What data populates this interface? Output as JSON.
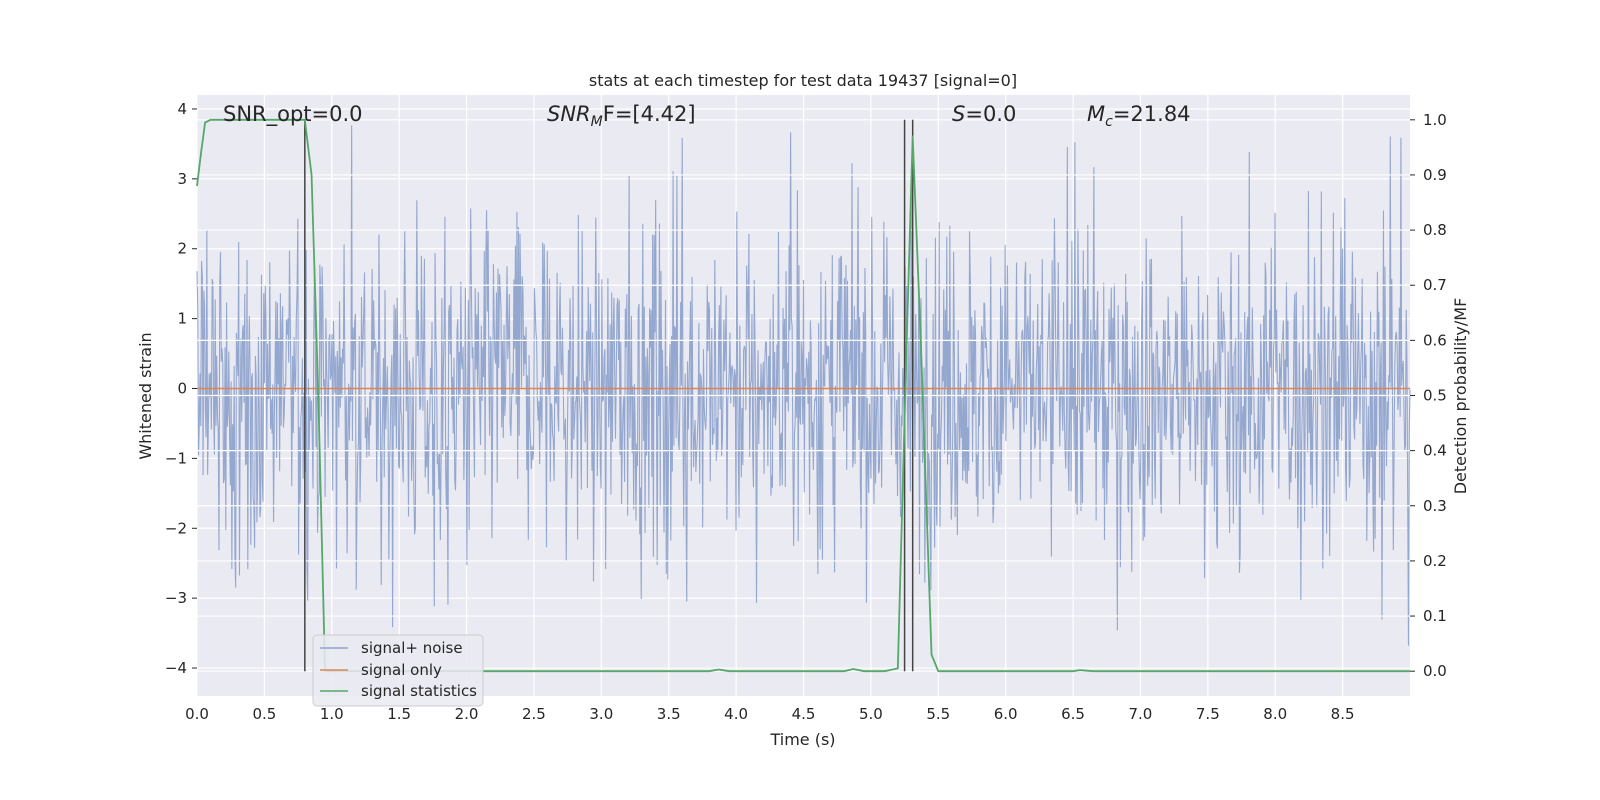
{
  "chart_data": {
    "type": "line",
    "title": "stats at each timestep for test data 19437 [signal=0]",
    "xlabel": "Time (s)",
    "ylabel": "Whitened strain",
    "y2label": "Detection probability/MF",
    "xlim": [
      0.0,
      9.0
    ],
    "ylim": [
      -4.4,
      4.2
    ],
    "y2lim": [
      -0.045,
      1.045
    ],
    "x_ticks": [
      "0.0",
      "0.5",
      "1.0",
      "1.5",
      "2.0",
      "2.5",
      "3.0",
      "3.5",
      "4.0",
      "4.5",
      "5.0",
      "5.5",
      "6.0",
      "6.5",
      "7.0",
      "7.5",
      "8.0",
      "8.5"
    ],
    "y_ticks": [
      "4",
      "3",
      "2",
      "1",
      "0",
      "−1",
      "−2",
      "−3",
      "−4"
    ],
    "y2_ticks": [
      "1.0",
      "0.9",
      "0.8",
      "0.7",
      "0.6",
      "0.5",
      "0.4",
      "0.3",
      "0.2",
      "0.1",
      "0.0"
    ],
    "grid": true,
    "legend_position": "lower-left",
    "annotations": {
      "snr_opt": "SNR_opt=0.0",
      "snr_mf_main": "SNR",
      "snr_mf_sub": "M",
      "snr_mf_rest": "F=[4.42]",
      "s_label": "S",
      "s_rest": "=0.0",
      "mc_main": "M",
      "mc_sub": "c",
      "mc_rest": "=21.84"
    },
    "vertical_lines_x": [
      0.8,
      5.25,
      5.31
    ],
    "noise_envelope": {
      "x_range": [
        0.0,
        9.0
      ],
      "typical_amplitude": 1.6,
      "max_peaks": [
        3.85,
        -3.85
      ]
    },
    "series": [
      {
        "name": "signal+ noise",
        "color": "#8fa3cc",
        "kind": "noise"
      },
      {
        "name": "signal only",
        "color": "#dd8452",
        "x": [
          0.0,
          9.0
        ],
        "y": [
          0.0,
          0.0
        ]
      },
      {
        "name": "signal statistics",
        "color": "#55a868",
        "axis": "right",
        "x": [
          0.0,
          0.03,
          0.06,
          0.1,
          0.2,
          0.4,
          0.6,
          0.8,
          0.85,
          0.9,
          0.95,
          1.0,
          1.5,
          2.0,
          2.5,
          3.0,
          3.5,
          3.8,
          3.87,
          3.95,
          4.5,
          4.8,
          4.87,
          4.95,
          5.1,
          5.2,
          5.26,
          5.31,
          5.37,
          5.45,
          5.5,
          6.0,
          6.5,
          6.55,
          6.65,
          7.0,
          7.5,
          8.0,
          8.5,
          9.0
        ],
        "y": [
          0.88,
          0.94,
          0.995,
          1.0,
          1.0,
          1.0,
          1.0,
          1.0,
          0.9,
          0.5,
          0.0,
          0.0,
          0.0,
          0.0,
          0.0,
          0.0,
          0.0,
          0.0,
          0.003,
          0.0,
          0.0,
          0.0,
          0.004,
          0.0,
          0.0,
          0.005,
          0.55,
          0.97,
          0.6,
          0.03,
          0.0,
          0.0,
          0.0,
          0.002,
          0.0,
          0.0,
          0.0,
          0.0,
          0.0,
          0.0
        ]
      }
    ],
    "colors": {
      "background": "#eaeaf2",
      "grid": "#ffffff",
      "vline": "#444444"
    }
  }
}
